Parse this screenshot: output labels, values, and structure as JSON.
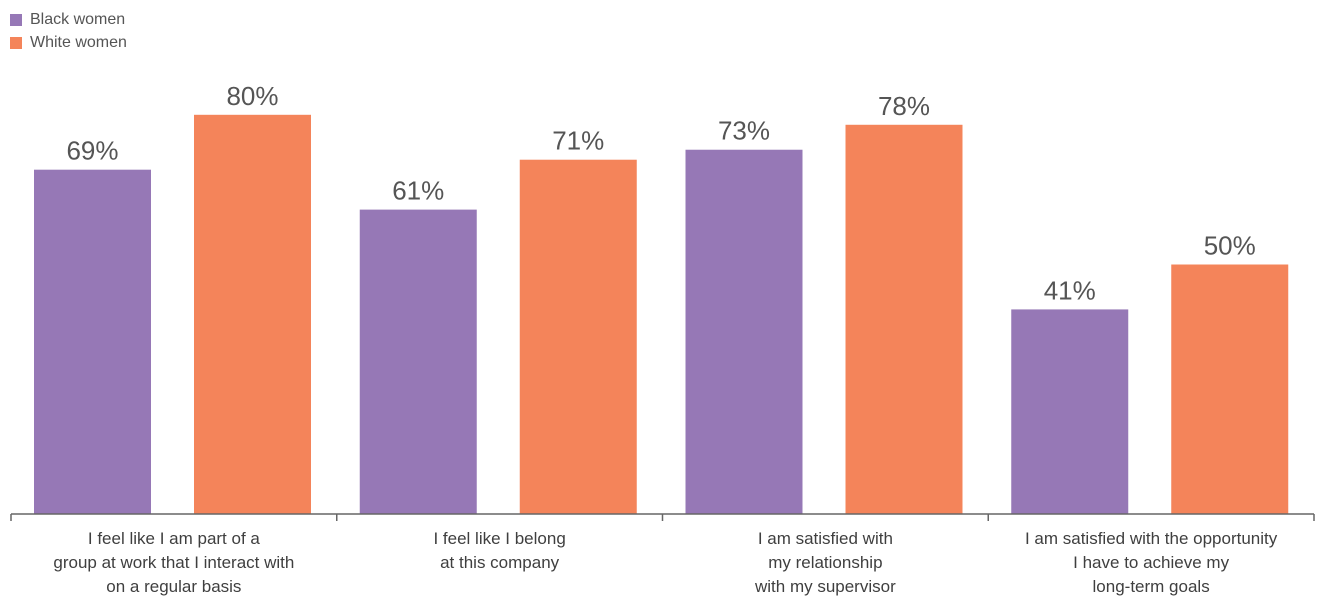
{
  "chart_data": {
    "type": "bar",
    "categories": [
      [
        "I feel like I am part of a",
        "group at work that I interact with",
        "on a regular basis"
      ],
      [
        "I feel like I belong",
        "at this company"
      ],
      [
        "I am satisfied with",
        "my relationship",
        "with my supervisor"
      ],
      [
        "I am satisfied with the opportunity",
        "I have to achieve my",
        "long-term goals"
      ]
    ],
    "series": [
      {
        "name": "Black women",
        "color": "#9678b6",
        "values": [
          69,
          61,
          73,
          41
        ],
        "labels": [
          "69%",
          "61%",
          "73%",
          "41%"
        ]
      },
      {
        "name": "White women",
        "color": "#f4845a",
        "values": [
          80,
          71,
          78,
          50
        ],
        "labels": [
          "80%",
          "71%",
          "78%",
          "50%"
        ]
      }
    ],
    "ylim": [
      0,
      100
    ],
    "grid": false,
    "legend_position": "top-left"
  }
}
